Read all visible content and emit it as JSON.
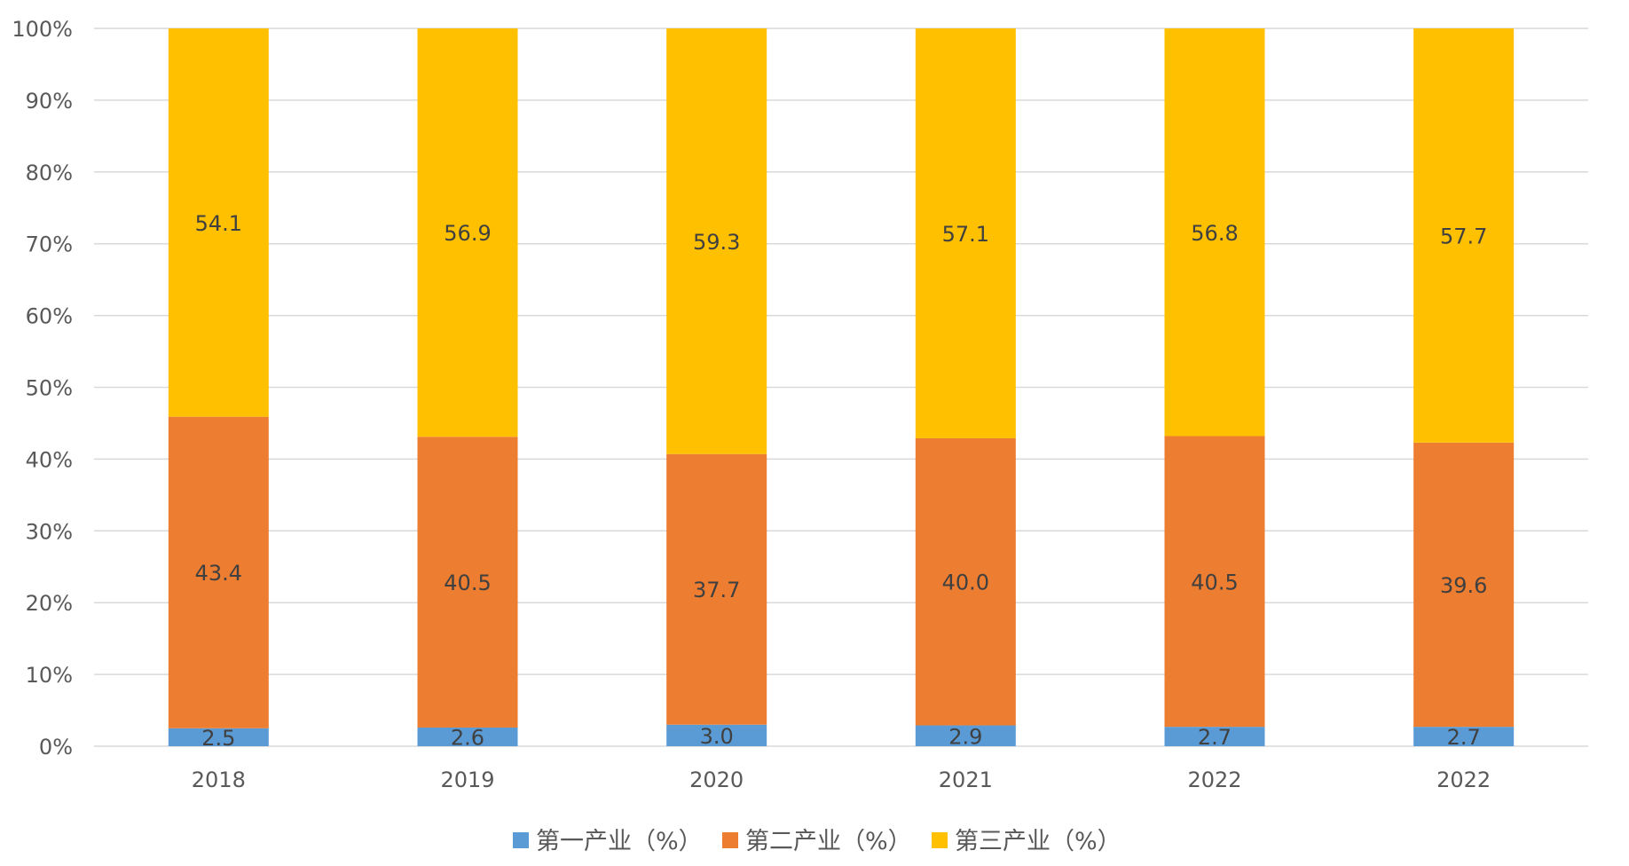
{
  "chart_data": {
    "type": "bar",
    "stacked": true,
    "percent_stacked": true,
    "title": "",
    "xlabel": "",
    "ylabel": "",
    "categories": [
      "2018",
      "2019",
      "2020",
      "2021",
      "2022",
      "2022"
    ],
    "ylim": [
      0,
      100
    ],
    "y_ticks": [
      "0%",
      "10%",
      "20%",
      "30%",
      "40%",
      "50%",
      "60%",
      "70%",
      "80%",
      "90%",
      "100%"
    ],
    "grid": true,
    "legend_position": "bottom",
    "series": [
      {
        "name": "第一产业（%）",
        "color": "#5B9BD5",
        "values": [
          2.5,
          2.6,
          3.0,
          2.9,
          2.7,
          2.7
        ],
        "labels": [
          "2.5",
          "2.6",
          "3.0",
          "2.9",
          "2.7",
          "2.7"
        ]
      },
      {
        "name": "第二产业（%）",
        "color": "#ED7D31",
        "values": [
          43.4,
          40.5,
          37.7,
          40.0,
          40.5,
          39.6
        ],
        "labels": [
          "43.4",
          "40.5",
          "37.7",
          "40.0",
          "40.5",
          "39.6"
        ]
      },
      {
        "name": "第三产业（%）",
        "color": "#FFC000",
        "values": [
          54.1,
          56.9,
          59.3,
          57.1,
          56.8,
          57.7
        ],
        "labels": [
          "54.1",
          "56.9",
          "59.3",
          "57.1",
          "56.8",
          "57.7"
        ]
      }
    ]
  }
}
